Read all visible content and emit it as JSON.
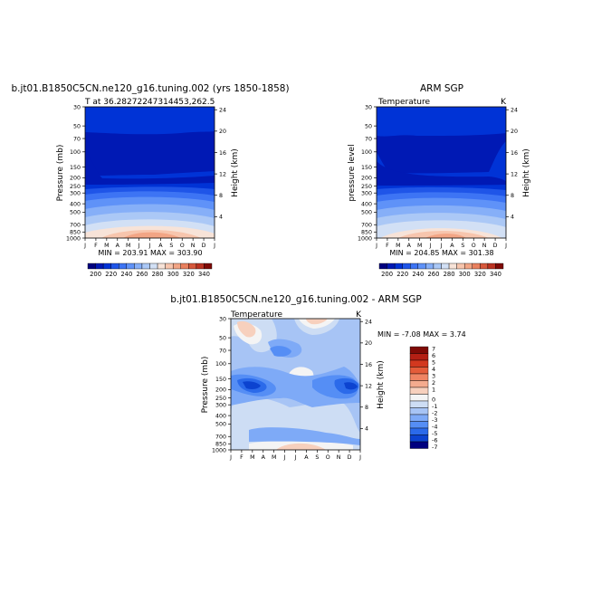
{
  "chart_data": [
    {
      "type": "heatmap",
      "title": "b.jt01.B1850C5CN.ne120_g16.tuning.002 (yrs 1850-1858)",
      "subtitle": "T at 36.28272247314453,262.5",
      "ylabel": "Pressure (mb)",
      "ylabel_right": "Height (km)",
      "stats": "MIN = 203.91  MAX = 303.90",
      "months": [
        "J",
        "F",
        "M",
        "A",
        "M",
        "J",
        "J",
        "A",
        "S",
        "O",
        "N",
        "D",
        "J"
      ],
      "pressure_ticks": [
        "30",
        "50",
        "70",
        "100",
        "150",
        "200",
        "250",
        "300",
        "400",
        "500",
        "700",
        "850",
        "1000"
      ],
      "height_ticks": [
        "24",
        "20",
        "16",
        "12",
        "8",
        "4"
      ],
      "colorbar_labels": [
        "200",
        "220",
        "240",
        "260",
        "280",
        "300",
        "320",
        "340"
      ]
    },
    {
      "type": "heatmap",
      "title": "ARM SGP",
      "subtitle_left": "Temperature",
      "subtitle_right": "K",
      "ylabel": "pressure level",
      "ylabel_right": "Height (km)",
      "stats": "MIN = 204.85  MAX = 301.38",
      "months": [
        "J",
        "F",
        "M",
        "A",
        "M",
        "J",
        "J",
        "A",
        "S",
        "O",
        "N",
        "D",
        "J"
      ],
      "pressure_ticks": [
        "30",
        "50",
        "70",
        "100",
        "150",
        "200",
        "250",
        "300",
        "400",
        "500",
        "700",
        "850",
        "1000"
      ],
      "height_ticks": [
        "24",
        "20",
        "16",
        "12",
        "8",
        "4"
      ],
      "colorbar_labels": [
        "200",
        "220",
        "240",
        "260",
        "280",
        "300",
        "320",
        "340"
      ]
    },
    {
      "type": "heatmap",
      "title": "b.jt01.B1850C5CN.ne120_g16.tuning.002 - ARM SGP",
      "subtitle_left": "Temperature",
      "subtitle_right": "K",
      "ylabel": "Pressure (mb)",
      "ylabel_right": "Height (km)",
      "stats": "MIN = -7.08  MAX =   3.74",
      "months": [
        "J",
        "F",
        "M",
        "A",
        "M",
        "J",
        "J",
        "A",
        "S",
        "O",
        "N",
        "D",
        "J"
      ],
      "pressure_ticks": [
        "30",
        "50",
        "70",
        "100",
        "150",
        "200",
        "250",
        "300",
        "400",
        "500",
        "700",
        "850",
        "1000"
      ],
      "height_ticks": [
        "24",
        "20",
        "16",
        "12",
        "8",
        "4"
      ],
      "legend_labels": [
        "7",
        "6",
        "5",
        "4",
        "3",
        "2",
        "1",
        "0",
        "-1",
        "-2",
        "-3",
        "-4",
        "-5",
        "-6",
        "-7"
      ]
    }
  ],
  "palette": {
    "abs": [
      "#00007f",
      "#0019b4",
      "#0033d6",
      "#1f55e8",
      "#3d74f4",
      "#5f92f8",
      "#86aff8",
      "#abc8f6",
      "#d2e0f5",
      "#f7e3d8",
      "#f7c5ad",
      "#f2a585",
      "#e8805e",
      "#d6583c",
      "#bb3322",
      "#7f0a06"
    ],
    "diff": [
      "#7f0a06",
      "#b41f14",
      "#d2381f",
      "#e45c3a",
      "#ef8463",
      "#f4ab8e",
      "#f7d0bd",
      "#f4f4f4",
      "#cdddf4",
      "#a7c4f5",
      "#7eaaf7",
      "#558ef5",
      "#2b6aea",
      "#0c43d0",
      "#00007f"
    ]
  }
}
